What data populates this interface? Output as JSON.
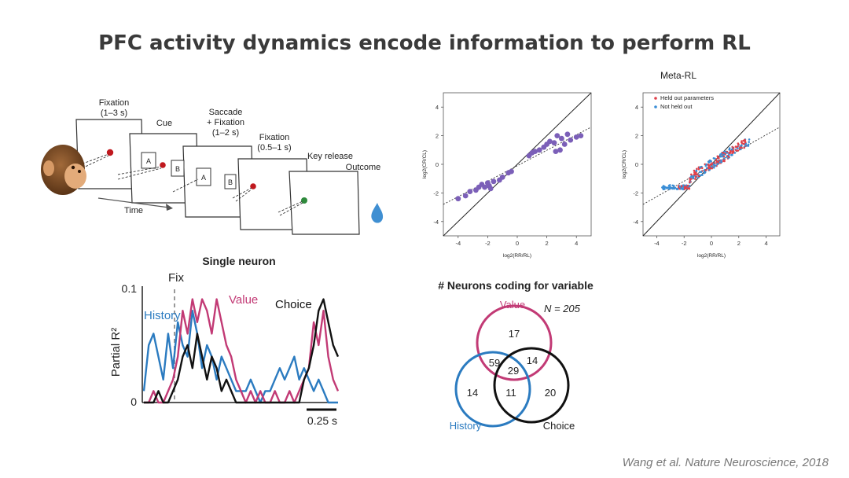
{
  "slide": {
    "title": "PFC activity dynamics encode information to perform RL",
    "citation": "Wang et al. Nature Neuroscience, 2018"
  },
  "task": {
    "screens": [
      {
        "label": "Fixation\n(1–3 s)"
      },
      {
        "label": "Cue"
      },
      {
        "label": "Saccade\n+ Fixation\n(1–2 s)"
      },
      {
        "label": "Fixation\n(0.5–1 s)"
      },
      {
        "label": "Key release"
      },
      {
        "label": "Outcome"
      }
    ],
    "option_a": "A",
    "option_b": "B",
    "time_label": "Time",
    "colors": {
      "fixation_dot": "#c0181e",
      "release_dot": "#2f8a3c",
      "water_drop": "#3f8fd2"
    }
  },
  "single_neuron": {
    "title": "Single neuron",
    "fix_label": "Fix",
    "ylabel": "Partial R²",
    "y_max_label": "0.1",
    "y_min_label": "0",
    "scale_label": "0.25 s",
    "series_labels": {
      "history": "History",
      "value": "Value",
      "choice": "Choice"
    }
  },
  "venn": {
    "title": "# Neurons coding for variable",
    "n_label": "N = 205",
    "sets": {
      "value": "Value",
      "history": "History",
      "choice": "Choice"
    },
    "regions": {
      "value_only": "17",
      "history_value": "59",
      "all_three": "29",
      "value_choice": "14",
      "history_only": "14",
      "history_choice": "11",
      "choice_only": "20"
    }
  },
  "chart_data": [
    {
      "type": "line",
      "title": "Single neuron",
      "ylabel": "Partial R²",
      "ylim": [
        0,
        0.1
      ],
      "x": [
        0,
        1,
        2,
        3,
        4,
        5,
        6,
        7,
        8,
        9,
        10,
        11,
        12,
        13,
        14,
        15,
        16,
        17,
        18,
        19,
        20,
        21,
        22,
        23,
        24,
        25,
        26,
        27,
        28,
        29,
        30,
        31,
        32,
        33,
        34,
        35,
        36,
        37,
        38,
        39,
        40
      ],
      "series": [
        {
          "name": "History",
          "color": "#2b7bc0",
          "values": [
            0.01,
            0.05,
            0.06,
            0.04,
            0.02,
            0.06,
            0.03,
            0.07,
            0.05,
            0.04,
            0.08,
            0.06,
            0.03,
            0.05,
            0.04,
            0.02,
            0.04,
            0.03,
            0.02,
            0.01,
            0.01,
            0.01,
            0.02,
            0.01,
            0.0,
            0.01,
            0.01,
            0.02,
            0.03,
            0.02,
            0.03,
            0.04,
            0.02,
            0.03,
            0.02,
            0.01,
            0.02,
            0.01,
            0.0,
            0.0,
            0.0
          ]
        },
        {
          "name": "Value",
          "color": "#c23a75",
          "values": [
            0.0,
            0.0,
            0.01,
            0.0,
            0.0,
            0.01,
            0.02,
            0.04,
            0.08,
            0.06,
            0.09,
            0.07,
            0.09,
            0.08,
            0.06,
            0.09,
            0.07,
            0.05,
            0.04,
            0.02,
            0.01,
            0.0,
            0.01,
            0.0,
            0.01,
            0.0,
            0.0,
            0.01,
            0.0,
            0.0,
            0.01,
            0.0,
            0.01,
            0.02,
            0.03,
            0.07,
            0.05,
            0.08,
            0.04,
            0.02,
            0.01
          ]
        },
        {
          "name": "Choice",
          "color": "#111111",
          "values": [
            0.0,
            0.0,
            0.0,
            0.01,
            0.0,
            0.0,
            0.01,
            0.02,
            0.04,
            0.05,
            0.03,
            0.06,
            0.04,
            0.02,
            0.04,
            0.03,
            0.01,
            0.02,
            0.01,
            0.0,
            0.0,
            0.0,
            0.0,
            0.0,
            0.0,
            0.0,
            0.0,
            0.0,
            0.0,
            0.0,
            0.0,
            0.0,
            0.0,
            0.02,
            0.03,
            0.05,
            0.08,
            0.09,
            0.07,
            0.05,
            0.04
          ]
        }
      ]
    },
    {
      "type": "scatter",
      "xlabel": "log2(RR/RL)",
      "ylabel": "log2(CR/CL)",
      "xlim": [
        -5,
        5
      ],
      "ylim": [
        -5,
        5
      ],
      "x_ticks": [
        "-4",
        "-2",
        "0",
        "2",
        "4"
      ],
      "y_ticks": [
        "4",
        "2",
        "0",
        "-2",
        "-4"
      ],
      "points": [
        [
          -4,
          -2.4
        ],
        [
          -3.5,
          -2.2
        ],
        [
          -3.2,
          -1.9
        ],
        [
          -2.8,
          -1.8
        ],
        [
          -2.6,
          -1.6
        ],
        [
          -2.4,
          -1.4
        ],
        [
          -2.2,
          -1.6
        ],
        [
          -2.0,
          -1.3
        ],
        [
          -1.9,
          -1.5
        ],
        [
          -1.8,
          -1.7
        ],
        [
          -1.6,
          -1.2
        ],
        [
          -1.2,
          -1.1
        ],
        [
          -1.0,
          -0.9
        ],
        [
          -0.6,
          -0.6
        ],
        [
          -0.4,
          -0.5
        ],
        [
          0.8,
          0.6
        ],
        [
          1.0,
          0.8
        ],
        [
          1.2,
          0.9
        ],
        [
          1.5,
          1.0
        ],
        [
          1.8,
          1.2
        ],
        [
          2.0,
          1.4
        ],
        [
          2.2,
          1.6
        ],
        [
          2.5,
          1.5
        ],
        [
          2.7,
          2.0
        ],
        [
          3.0,
          1.8
        ],
        [
          3.2,
          1.4
        ],
        [
          3.4,
          2.1
        ],
        [
          3.6,
          1.7
        ],
        [
          4.0,
          1.9
        ],
        [
          4.3,
          2.0
        ],
        [
          2.6,
          0.9
        ],
        [
          2.9,
          1.0
        ]
      ]
    },
    {
      "type": "scatter",
      "title": "Meta-RL",
      "xlabel": "log2(RR/RL)",
      "ylabel": "log2(CR/CL)",
      "xlim": [
        -5,
        5
      ],
      "ylim": [
        -5,
        5
      ],
      "x_ticks": [
        "-4",
        "-2",
        "0",
        "2",
        "4"
      ],
      "y_ticks": [
        "4",
        "2",
        "0",
        "-2",
        "-4"
      ],
      "legend": "top-left",
      "series": [
        {
          "name": "Held out parameters",
          "color": "#e0404a"
        },
        {
          "name": "Not held out",
          "color": "#3a8ed6"
        }
      ]
    }
  ]
}
